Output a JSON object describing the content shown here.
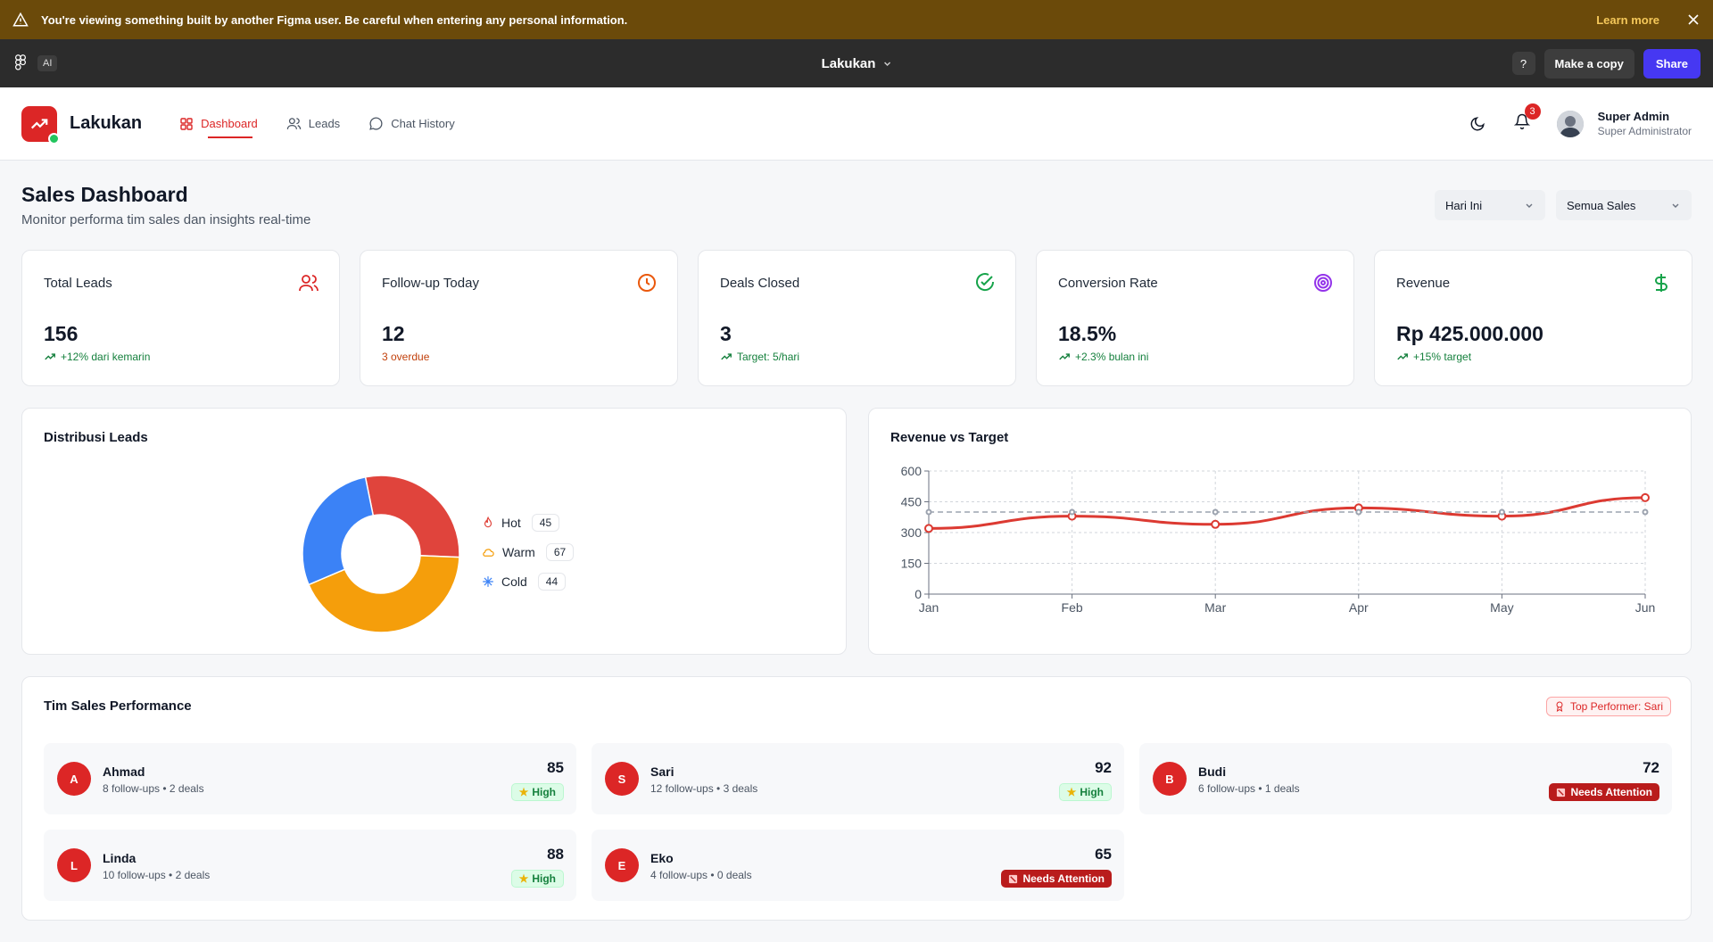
{
  "figma_bar": {
    "warning": "You're viewing something built by another Figma user. Be careful when entering any personal information.",
    "learn_more": "Learn more",
    "ai_badge": "AI",
    "file_title": "Lakukan",
    "help": "?",
    "make_copy": "Make a copy",
    "share": "Share"
  },
  "header": {
    "brand": "Lakukan",
    "nav": [
      {
        "label": "Dashboard",
        "active": true
      },
      {
        "label": "Leads",
        "active": false
      },
      {
        "label": "Chat History",
        "active": false
      }
    ],
    "notifications": "3",
    "user_name": "Super Admin",
    "user_role": "Super Administrator"
  },
  "page": {
    "title": "Sales Dashboard",
    "subtitle": "Monitor performa tim sales dan insights real-time",
    "filter_period": "Hari Ini",
    "filter_sales": "Semua Sales"
  },
  "stats": [
    {
      "label": "Total Leads",
      "value": "156",
      "trend": "+12% dari kemarin",
      "trend_color": "#15803d",
      "icon": "users-icon",
      "icon_color": "#dc2626"
    },
    {
      "label": "Follow-up Today",
      "value": "12",
      "trend": "3 overdue",
      "trend_color": "#c2410c",
      "icon": "clock-icon",
      "icon_color": "#ea580c"
    },
    {
      "label": "Deals Closed",
      "value": "3",
      "trend": "Target: 5/hari",
      "trend_color": "#15803d",
      "icon": "check-circle-icon",
      "icon_color": "#16a34a"
    },
    {
      "label": "Conversion Rate",
      "value": "18.5%",
      "trend": "+2.3% bulan ini",
      "trend_color": "#15803d",
      "icon": "target-icon",
      "icon_color": "#9333ea"
    },
    {
      "label": "Revenue",
      "value": "Rp 425.000.000",
      "trend": "+15% target",
      "trend_color": "#15803d",
      "icon": "dollar-icon",
      "icon_color": "#16a34a"
    }
  ],
  "distribution": {
    "title": "Distribusi Leads",
    "items": [
      {
        "label": "Hot",
        "count": "45",
        "color": "#e0443c",
        "icon": "flame-icon"
      },
      {
        "label": "Warm",
        "count": "67",
        "color": "#f59e0b",
        "icon": "cloud-icon"
      },
      {
        "label": "Cold",
        "count": "44",
        "color": "#3b82f6",
        "icon": "snowflake-icon"
      }
    ]
  },
  "revenue_chart": {
    "title": "Revenue vs Target"
  },
  "chart_data": [
    {
      "type": "pie",
      "categories": [
        "Hot",
        "Warm",
        "Cold"
      ],
      "values": [
        45,
        67,
        44
      ],
      "colors": [
        "#e0443c",
        "#f59e0b",
        "#3b82f6"
      ],
      "donut": true
    },
    {
      "type": "line",
      "categories": [
        "Jan",
        "Feb",
        "Mar",
        "Apr",
        "May",
        "Jun"
      ],
      "series": [
        {
          "values": [
            320,
            380,
            340,
            420,
            380,
            470
          ],
          "color": "#dc3a32"
        },
        {
          "values": [
            400,
            400,
            400,
            400,
            400,
            400
          ],
          "color": "#9ca3af",
          "dashed": true
        }
      ],
      "ylim": [
        0,
        600
      ],
      "yticks": [
        0,
        150,
        300,
        450,
        600
      ],
      "grid": true
    }
  ],
  "team": {
    "title": "Tim Sales Performance",
    "top_performer": "Top Performer: Sari",
    "members": [
      {
        "initial": "A",
        "name": "Ahmad",
        "meta": "8 follow-ups • 2 deals",
        "score": "85",
        "status": "High",
        "level": "high"
      },
      {
        "initial": "S",
        "name": "Sari",
        "meta": "12 follow-ups • 3 deals",
        "score": "92",
        "status": "High",
        "level": "high"
      },
      {
        "initial": "B",
        "name": "Budi",
        "meta": "6 follow-ups • 1 deals",
        "score": "72",
        "status": "Needs Attention",
        "level": "attn"
      },
      {
        "initial": "L",
        "name": "Linda",
        "meta": "10 follow-ups • 2 deals",
        "score": "88",
        "status": "High",
        "level": "high"
      },
      {
        "initial": "E",
        "name": "Eko",
        "meta": "4 follow-ups • 0 deals",
        "score": "65",
        "status": "Needs Attention",
        "level": "attn"
      }
    ]
  }
}
